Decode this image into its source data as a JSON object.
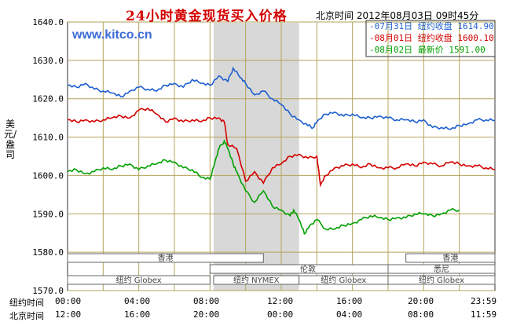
{
  "header": {
    "title": "24小时黄金现货买入价格",
    "datetime": "北京时间  2012年08月03日 09时45分",
    "site": "www.kitco.cn",
    "ylabel": "美元/盎司"
  },
  "legend": [
    {
      "text": "-07月31日 纽约收盘 1614.90",
      "color": "#1e5fd0"
    },
    {
      "text": "-08月01日 纽约收盘 1600.10",
      "color": "#d40000"
    },
    {
      "text": "-08月02日  最新价 1591.00",
      "color": "#00a000"
    }
  ],
  "xaxis": {
    "row1_label": "纽约时间",
    "row2_label": "北京时间",
    "ny_ticks": [
      "00:00",
      "04:00",
      "08:00",
      "12:00",
      "16:00",
      "20:00",
      "23:59"
    ],
    "bj_ticks": [
      "12:00",
      "16:00",
      "20:00",
      "00:00",
      "04:00",
      "08:00",
      "11:59"
    ]
  },
  "markets": [
    {
      "name": "香港"
    },
    {
      "name": "伦敦"
    },
    {
      "name": "纽约 Globex"
    },
    {
      "name": "纽约 NYMEX"
    },
    {
      "name": "纽约 Globex"
    },
    {
      "name": "香港"
    },
    {
      "name": "悉尼"
    },
    {
      "name": "纽约 Globex"
    }
  ],
  "chart_data": {
    "type": "line",
    "ylim": [
      1570,
      1640
    ],
    "yticks": [
      "1570.0",
      "1580.0",
      "1590.0",
      "1600.0",
      "1610.0",
      "1620.0",
      "1630.0",
      "1640.0"
    ],
    "xlim_hours": [
      0,
      24
    ],
    "shaded_region_hours": [
      8.2,
      13.0
    ],
    "grid": true,
    "series": [
      {
        "name": "07月31日",
        "color": "#1e5fd0",
        "points": [
          [
            0,
            1623.5
          ],
          [
            0.5,
            1623
          ],
          [
            1,
            1624
          ],
          [
            1.5,
            1622.5
          ],
          [
            2,
            1622
          ],
          [
            2.5,
            1621.5
          ],
          [
            3,
            1620.5
          ],
          [
            3.5,
            1622
          ],
          [
            4,
            1623
          ],
          [
            4.5,
            1622.5
          ],
          [
            5,
            1622
          ],
          [
            5.5,
            1623.5
          ],
          [
            6,
            1624
          ],
          [
            6.5,
            1623
          ],
          [
            7,
            1625
          ],
          [
            7.5,
            1624
          ],
          [
            8,
            1623.5
          ],
          [
            8.5,
            1626
          ],
          [
            9,
            1624.5
          ],
          [
            9.3,
            1628
          ],
          [
            9.7,
            1625.5
          ],
          [
            10,
            1624
          ],
          [
            10.5,
            1621
          ],
          [
            11,
            1622
          ],
          [
            11.5,
            1620
          ],
          [
            12,
            1618.5
          ],
          [
            12.5,
            1616
          ],
          [
            13,
            1614.5
          ],
          [
            13.5,
            1613
          ],
          [
            13.8,
            1612.5
          ],
          [
            14,
            1614
          ],
          [
            14.5,
            1616
          ],
          [
            15,
            1616.5
          ],
          [
            15.5,
            1615.5
          ],
          [
            16,
            1616
          ],
          [
            16.5,
            1615
          ],
          [
            17,
            1615
          ],
          [
            17.5,
            1615.5
          ],
          [
            18,
            1615
          ],
          [
            18.5,
            1614.5
          ],
          [
            19,
            1614.5
          ],
          [
            19.5,
            1614
          ],
          [
            20,
            1614.5
          ],
          [
            20.5,
            1612.5
          ],
          [
            21,
            1612.5
          ],
          [
            21.5,
            1612
          ],
          [
            22,
            1613
          ],
          [
            22.5,
            1613.5
          ],
          [
            23,
            1614.5
          ],
          [
            23.5,
            1614.5
          ],
          [
            24,
            1614.3
          ]
        ]
      },
      {
        "name": "08月01日",
        "color": "#d40000",
        "points": [
          [
            0,
            1614.5
          ],
          [
            0.5,
            1614
          ],
          [
            1,
            1614.5
          ],
          [
            1.5,
            1614
          ],
          [
            2,
            1614.5
          ],
          [
            2.5,
            1615
          ],
          [
            3,
            1615.5
          ],
          [
            3.5,
            1615
          ],
          [
            4,
            1617
          ],
          [
            4.5,
            1617.5
          ],
          [
            5,
            1616
          ],
          [
            5.5,
            1614
          ],
          [
            6,
            1615
          ],
          [
            6.5,
            1614
          ],
          [
            7,
            1614.5
          ],
          [
            7.5,
            1614
          ],
          [
            8,
            1615
          ],
          [
            8.5,
            1615
          ],
          [
            8.8,
            1614
          ],
          [
            9,
            1608
          ],
          [
            9.5,
            1607
          ],
          [
            10,
            1598.5
          ],
          [
            10.5,
            1601
          ],
          [
            11,
            1598
          ],
          [
            11.5,
            1602
          ],
          [
            12,
            1603
          ],
          [
            12.5,
            1605
          ],
          [
            13,
            1605.5
          ],
          [
            13.5,
            1604.5
          ],
          [
            14,
            1605
          ],
          [
            14.2,
            1597.5
          ],
          [
            14.5,
            1600
          ],
          [
            15,
            1602
          ],
          [
            15.5,
            1602.5
          ],
          [
            16,
            1603
          ],
          [
            16.5,
            1602
          ],
          [
            17,
            1603
          ],
          [
            17.5,
            1602
          ],
          [
            18,
            1602
          ],
          [
            18.5,
            1602
          ],
          [
            19,
            1603
          ],
          [
            19.5,
            1602.5
          ],
          [
            20,
            1603.5
          ],
          [
            20.5,
            1603
          ],
          [
            21,
            1602.5
          ],
          [
            21.5,
            1603.5
          ],
          [
            22,
            1603
          ],
          [
            22.5,
            1602.5
          ],
          [
            23,
            1602.5
          ],
          [
            23.5,
            1602
          ],
          [
            24,
            1601.5
          ]
        ]
      },
      {
        "name": "08月02日",
        "color": "#00a000",
        "points": [
          [
            0,
            1601
          ],
          [
            0.5,
            1601.5
          ],
          [
            1,
            1600.5
          ],
          [
            1.5,
            1601
          ],
          [
            2,
            1602
          ],
          [
            2.5,
            1601.5
          ],
          [
            3,
            1602.5
          ],
          [
            3.5,
            1603
          ],
          [
            4,
            1601.5
          ],
          [
            4.5,
            1602.5
          ],
          [
            5,
            1603
          ],
          [
            5.5,
            1604
          ],
          [
            6,
            1603.5
          ],
          [
            6.5,
            1602
          ],
          [
            7,
            1601.5
          ],
          [
            7.5,
            1599.5
          ],
          [
            8,
            1599
          ],
          [
            8.3,
            1604
          ],
          [
            8.5,
            1607
          ],
          [
            8.8,
            1609
          ],
          [
            9,
            1607
          ],
          [
            9.3,
            1603
          ],
          [
            9.5,
            1601
          ],
          [
            10,
            1596
          ],
          [
            10.5,
            1593
          ],
          [
            11,
            1596
          ],
          [
            11.5,
            1592
          ],
          [
            12,
            1591
          ],
          [
            12.5,
            1589.5
          ],
          [
            12.7,
            1591
          ],
          [
            13,
            1588.5
          ],
          [
            13.3,
            1584.8
          ],
          [
            13.6,
            1587
          ],
          [
            14,
            1588.5
          ],
          [
            14.5,
            1586
          ],
          [
            15,
            1586
          ],
          [
            15.5,
            1587
          ],
          [
            16,
            1587.5
          ],
          [
            16.5,
            1588.5
          ],
          [
            17,
            1589.5
          ],
          [
            17.5,
            1589
          ],
          [
            18,
            1588.5
          ],
          [
            18.5,
            1589
          ],
          [
            19,
            1589
          ],
          [
            19.5,
            1590
          ],
          [
            20,
            1590
          ],
          [
            20.5,
            1589.5
          ],
          [
            21,
            1590
          ],
          [
            21.5,
            1591
          ],
          [
            22,
            1591
          ]
        ]
      }
    ]
  }
}
